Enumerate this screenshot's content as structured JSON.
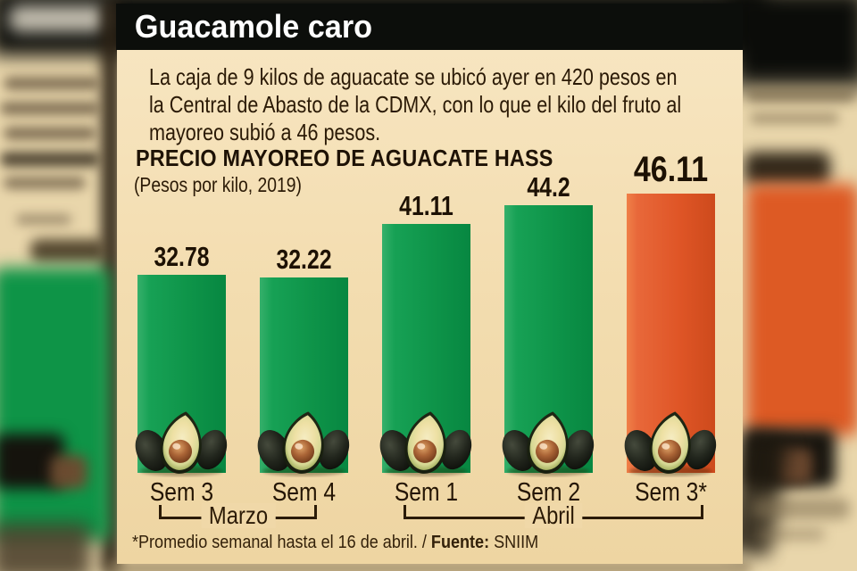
{
  "header": {
    "title": "Guacamole caro"
  },
  "intro": {
    "lines": [
      "La caja de 9 kilos de aguacate se ubicó ayer en 420 pesos en",
      "la Central de Abasto de la CDMX, con lo que el kilo del fruto al",
      "mayoreo subió a 46 pesos."
    ]
  },
  "chart_data": {
    "type": "bar",
    "title": "PRECIO MAYOREO DE AGUACATE HASS",
    "subtitle": "(Pesos por kilo, 2019)",
    "categories": [
      "Sem 3",
      "Sem 4",
      "Sem 1",
      "Sem 2",
      "Sem 3*"
    ],
    "values": [
      32.78,
      32.22,
      41.11,
      44.2,
      46.11
    ],
    "value_labels": [
      "32.78",
      "32.22",
      "41.11",
      "44.2",
      "46.11"
    ],
    "bar_colors": [
      "green",
      "green",
      "green",
      "green",
      "orange"
    ],
    "month_groups": [
      {
        "label": "Marzo",
        "from": 0,
        "to": 1
      },
      {
        "label": "Abril",
        "from": 2,
        "to": 4
      }
    ],
    "ylim": [
      0,
      46.11
    ],
    "grid": false,
    "legend": false,
    "xlabel": "",
    "ylabel": "Pesos por kilo",
    "colors": {
      "bar_green": "#0e9449",
      "bar_orange": "#df5526",
      "text": "#2b1a06",
      "card_bg": "#f3ddb0",
      "header_bg": "#0c0e0b"
    }
  },
  "footnote": {
    "text_regular": "*Promedio semanal hasta el 16 de abril. / ",
    "source_label": "Fuente:",
    "source_value": " SNIIM"
  }
}
